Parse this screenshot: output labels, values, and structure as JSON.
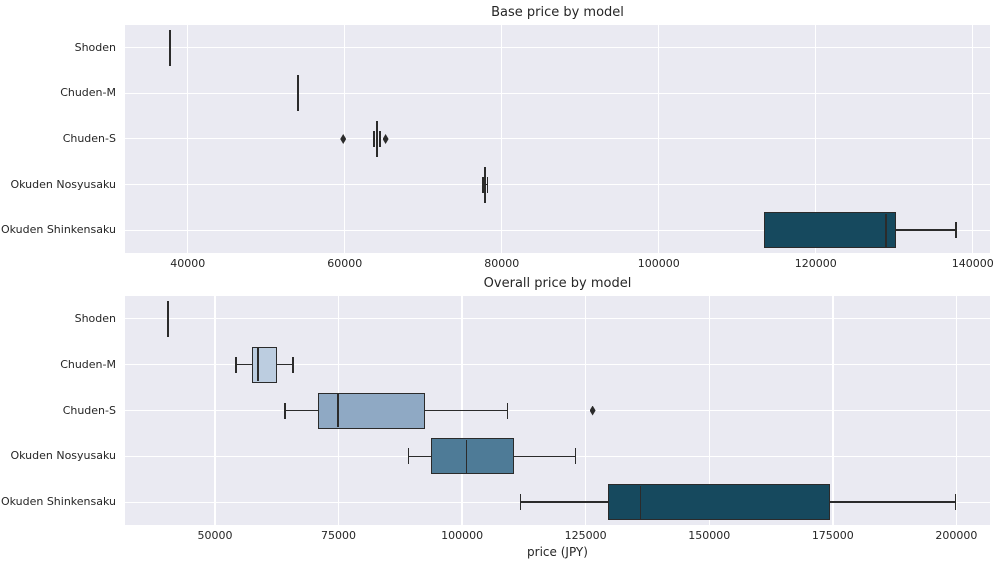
{
  "figure": {
    "background": "#ffffff",
    "plot_background": "#eaeaf2",
    "grid_color": "#ffffff",
    "text_color": "#262626",
    "box_edge_color": "#2b2b2b"
  },
  "chart_data": [
    {
      "type": "boxplot",
      "orientation": "horizontal",
      "title": "Base price by model",
      "xlabel": "",
      "ylabel": "",
      "grid": true,
      "xlim": [
        32000,
        142200
      ],
      "xticks": [
        40000,
        60000,
        80000,
        100000,
        120000,
        140000
      ],
      "categories": [
        "Shoden",
        "Chuden-M",
        "Chuden-S",
        "Okuden Nosyusaku",
        "Okuden Shinkensaku"
      ],
      "series": [
        {
          "category": "Shoden",
          "whislo": 37500,
          "q1": 37600,
          "med": 37700,
          "q3": 37800,
          "whishi": 37900,
          "outliers": [],
          "fill": "#e8eef4"
        },
        {
          "category": "Chuden-M",
          "whislo": 53800,
          "q1": 53900,
          "med": 54000,
          "q3": 54100,
          "whishi": 54200,
          "outliers": [],
          "fill": "#bccde0"
        },
        {
          "category": "Chuden-S",
          "whislo": 63700,
          "q1": 63900,
          "med": 64100,
          "q3": 64300,
          "whishi": 64500,
          "outliers": [
            59800,
            65200
          ],
          "fill": "#8fa9c4"
        },
        {
          "category": "Okuden Nosyusaku",
          "whislo": 77600,
          "q1": 77800,
          "med": 77900,
          "q3": 78000,
          "whishi": 78200,
          "outliers": [],
          "fill": "#4e7b97"
        },
        {
          "category": "Okuden Shinkensaku",
          "whislo": 113400,
          "q1": 113400,
          "med": 129000,
          "q3": 130200,
          "whishi": 137900,
          "outliers": [],
          "fill": "#16495e"
        }
      ]
    },
    {
      "type": "boxplot",
      "orientation": "horizontal",
      "title": "Overall price by model",
      "xlabel": "price (JPY)",
      "ylabel": "",
      "grid": true,
      "xlim": [
        31800,
        206800
      ],
      "xticks": [
        50000,
        75000,
        100000,
        125000,
        150000,
        175000,
        200000
      ],
      "categories": [
        "Shoden",
        "Chuden-M",
        "Chuden-S",
        "Okuden Nosyusaku",
        "Okuden Shinkensaku"
      ],
      "series": [
        {
          "category": "Shoden",
          "whislo": 40200,
          "q1": 40300,
          "med": 40400,
          "q3": 40500,
          "whishi": 40600,
          "outliers": [],
          "fill": "#e8eef4"
        },
        {
          "category": "Chuden-M",
          "whislo": 54300,
          "q1": 57400,
          "med": 58700,
          "q3": 62500,
          "whishi": 65800,
          "outliers": [],
          "fill": "#bccde0"
        },
        {
          "category": "Chuden-S",
          "whislo": 64200,
          "q1": 70800,
          "med": 74900,
          "q3": 92400,
          "whishi": 109200,
          "outliers": [
            126400
          ],
          "fill": "#8fa9c4"
        },
        {
          "category": "Okuden Nosyusaku",
          "whislo": 89200,
          "q1": 93800,
          "med": 100900,
          "q3": 110400,
          "whishi": 122900,
          "outliers": [],
          "fill": "#4e7b97"
        },
        {
          "category": "Okuden Shinkensaku",
          "whislo": 111800,
          "q1": 129600,
          "med": 136100,
          "q3": 174400,
          "whishi": 199800,
          "outliers": [],
          "fill": "#16495e"
        }
      ]
    }
  ]
}
